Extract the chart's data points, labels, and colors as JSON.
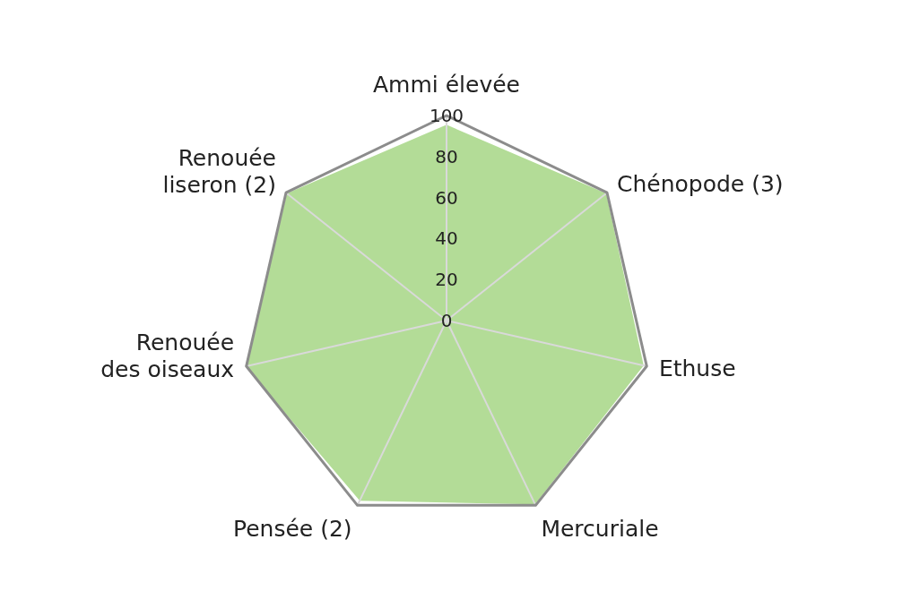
{
  "chart_data": {
    "type": "radar",
    "categories": [
      "Ammi élevée",
      "Chénopode (3)",
      "Ethuse",
      "Mercuriale",
      "Pensée (2)",
      "Renouée des oiseaux",
      "Renouée liseron (2)"
    ],
    "series": [
      {
        "color": "#b3dc97",
        "values": [
          95,
          99,
          98,
          99,
          97,
          100,
          99
        ]
      }
    ],
    "ylim": [
      0,
      100
    ],
    "yticks": [
      0,
      20,
      40,
      60,
      80,
      100
    ],
    "grid": true
  }
}
